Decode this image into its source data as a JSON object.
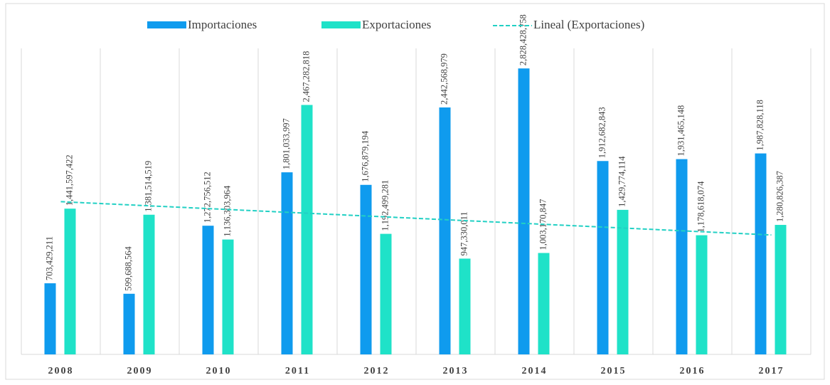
{
  "chart_data": {
    "type": "bar",
    "categories": [
      "2008",
      "2009",
      "2010",
      "2011",
      "2012",
      "2013",
      "2014",
      "2015",
      "2016",
      "2017"
    ],
    "series": [
      {
        "name": "Importaciones",
        "color": "#0f9bee",
        "values": [
          703429211,
          599688564,
          1272756512,
          1801033997,
          1676879194,
          2442568979,
          2828428758,
          1912682843,
          1931465148,
          1987828118
        ],
        "value_labels": [
          "703,429,211",
          "599,688,564",
          "1,272,756,512",
          "1,801,033,997",
          "1,676,879,194",
          "2,442,568,979",
          "2,828,428,758",
          "1,912,682,843",
          "1,931,465,148",
          "1,987,828,118"
        ]
      },
      {
        "name": "Exportaciones",
        "color": "#1fe2c8",
        "values": [
          1441597422,
          1381514519,
          1136303964,
          2467282818,
          1192499281,
          947330011,
          1003170847,
          1429774114,
          1178618074,
          1280826387
        ],
        "value_labels": [
          "1,441,597,422",
          "1,381,514,519",
          "1,136,303,964",
          "2,467,282,818",
          "1,192,499,281",
          "947,330,011",
          "1,003,170,847",
          "1,429,774,114",
          "1,178,618,074",
          "1,280,826,387"
        ]
      }
    ],
    "trendline": {
      "name": "Lineal (Exportaciones)",
      "series": 1,
      "color": "#22d0c4"
    },
    "ylim": [
      0,
      2900000000
    ],
    "grid": "vertical",
    "legend": "top"
  }
}
